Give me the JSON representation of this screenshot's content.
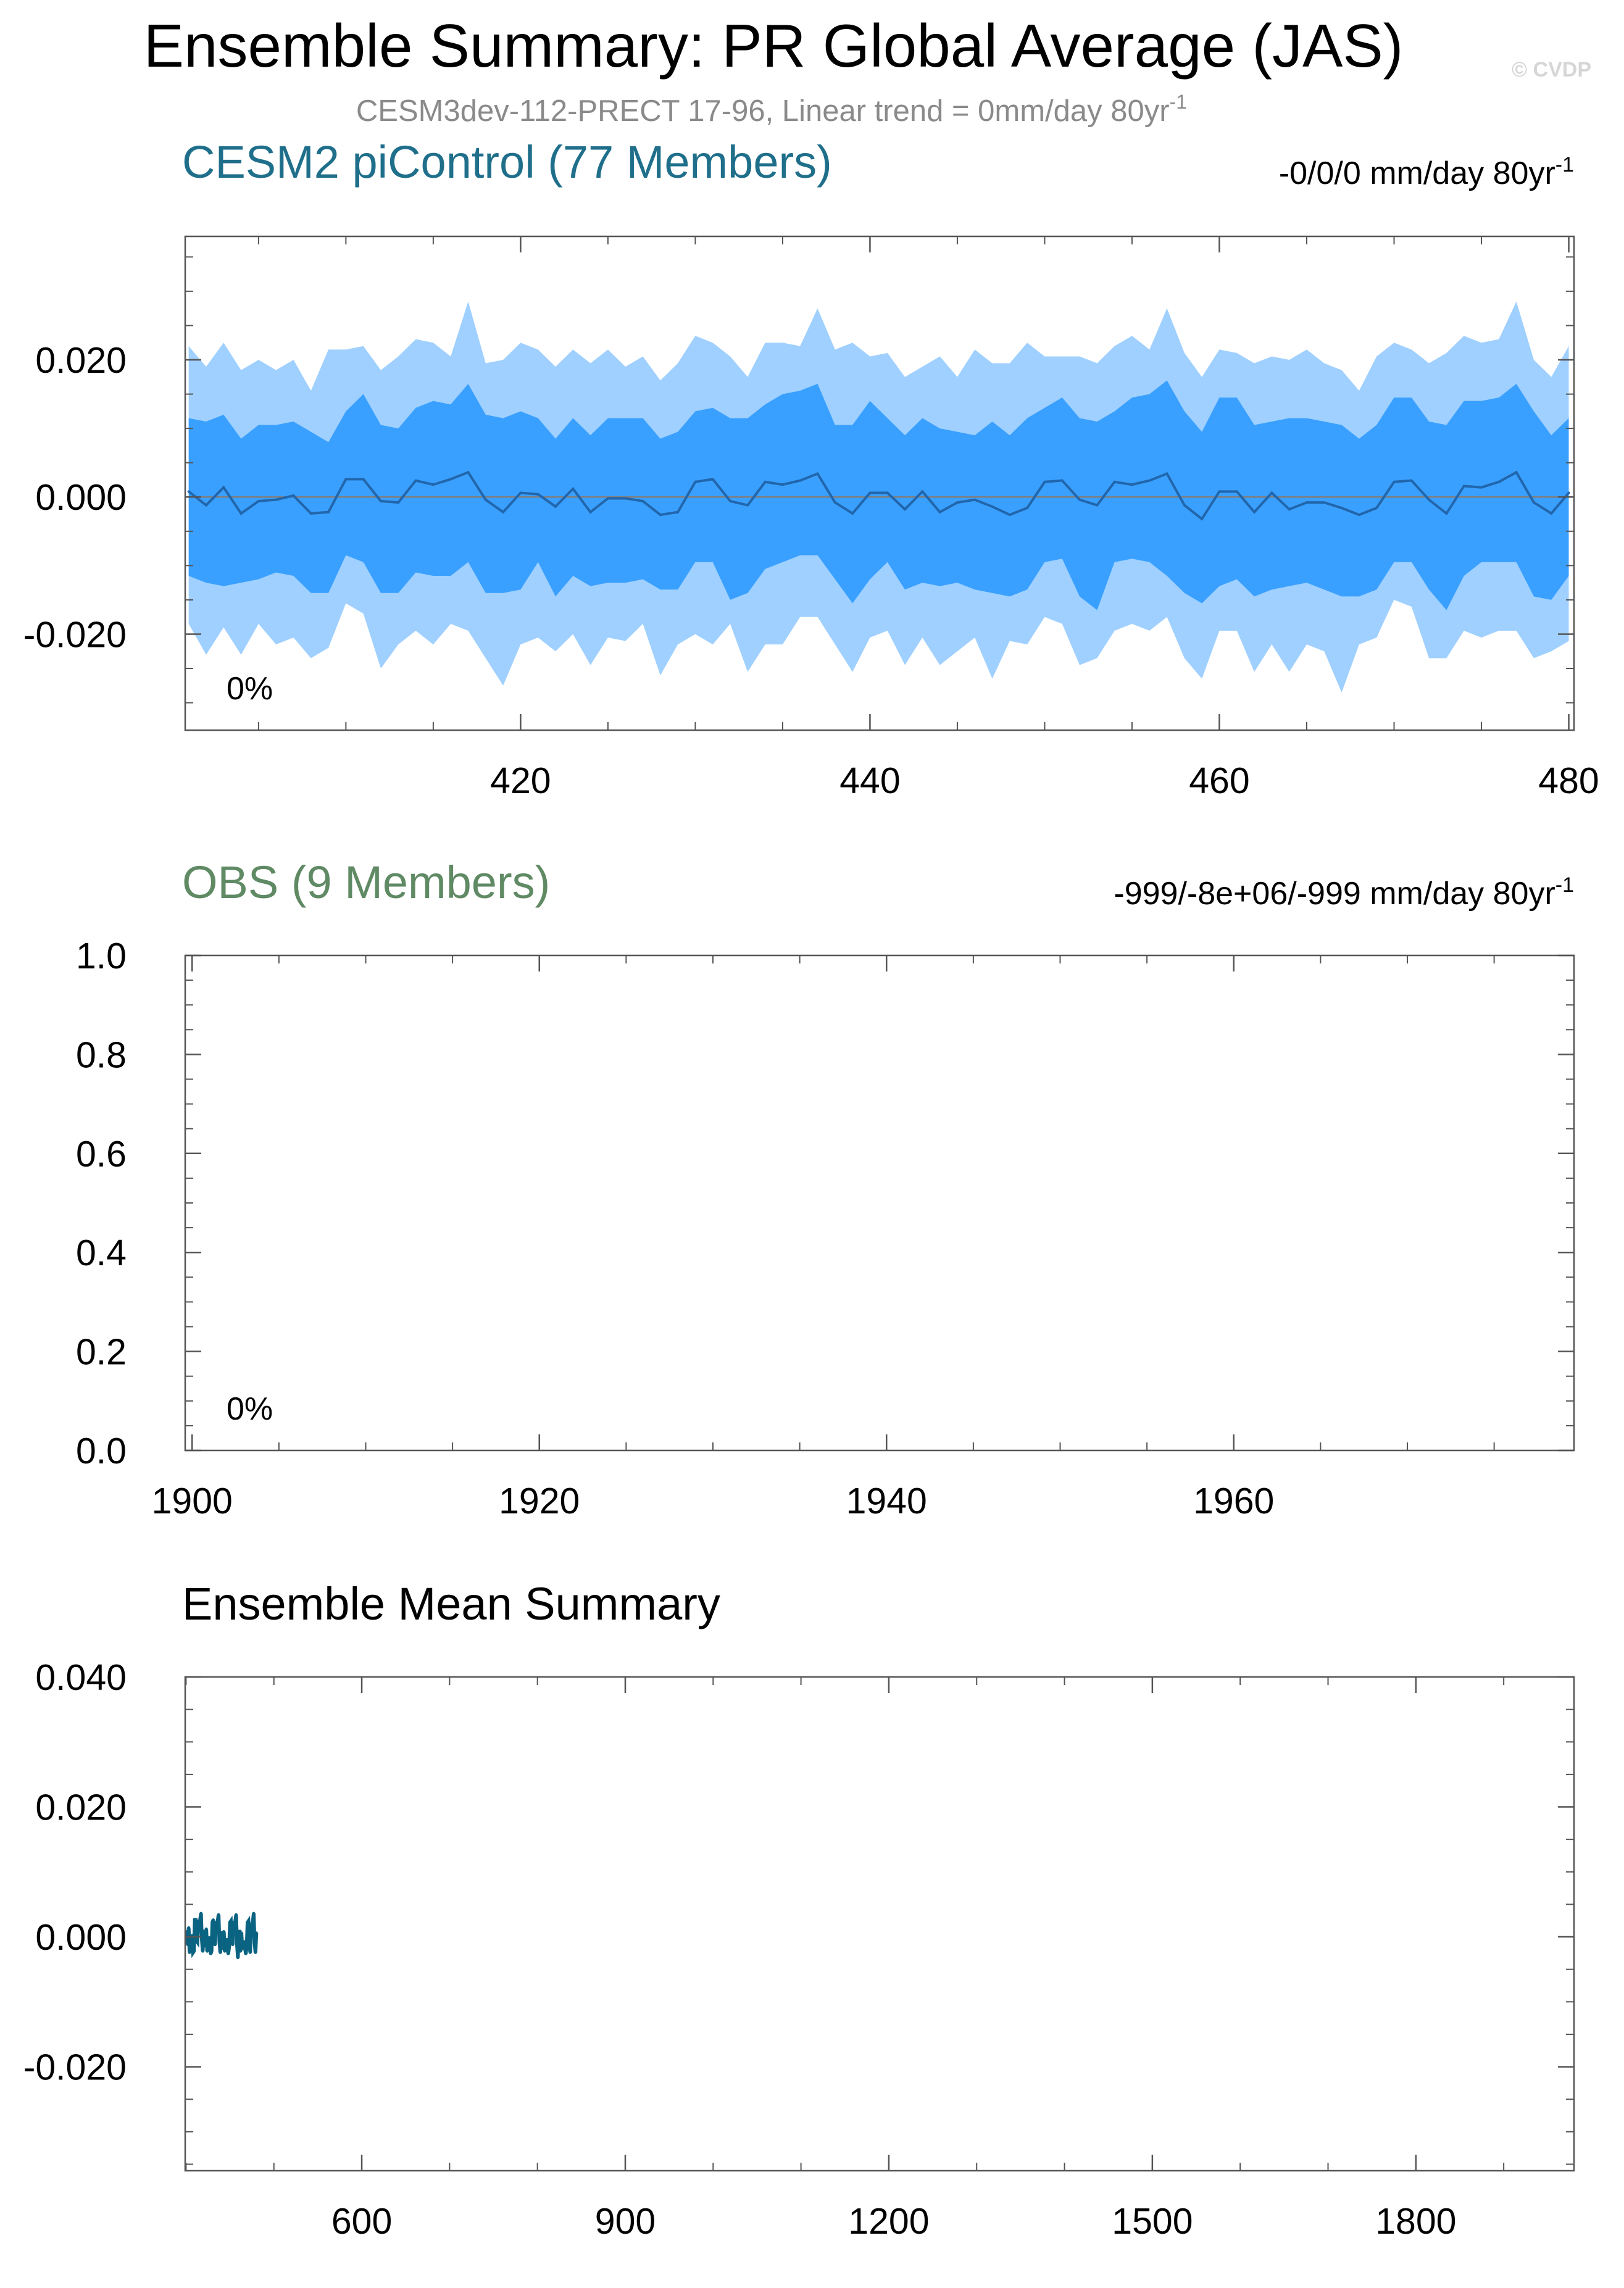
{
  "figure": {
    "title": "Ensemble Summary: PR Global Average (JAS)",
    "subtitle_main": "CESM3dev-112-PRECT 17-96, Linear trend = 0mm/day 80yr",
    "subtitle_sup": "-1",
    "watermark": "© CVDP"
  },
  "colors": {
    "model_title": "#1f6f8b",
    "obs_title": "#5f8a64",
    "band_outer": "#9fd0ff",
    "band_inner": "#3aa0ff",
    "mean_line": "#2166ac",
    "summary_line": "#0b6382",
    "axis": "#555555"
  },
  "chart_data": [
    {
      "type": "area",
      "panel_title": "CESM2 piControl (77 Members)",
      "right_label": "-0/0/0 mm/day 80yr",
      "right_sup": "-1",
      "percent_label": "0%",
      "x": [
        401,
        402,
        403,
        404,
        405,
        406,
        407,
        408,
        409,
        410,
        411,
        412,
        413,
        414,
        415,
        416,
        417,
        418,
        419,
        420,
        421,
        422,
        423,
        424,
        425,
        426,
        427,
        428,
        429,
        430,
        431,
        432,
        433,
        434,
        435,
        436,
        437,
        438,
        439,
        440,
        441,
        442,
        443,
        444,
        445,
        446,
        447,
        448,
        449,
        450,
        451,
        452,
        453,
        454,
        455,
        456,
        457,
        458,
        459,
        460,
        461,
        462,
        463,
        464,
        465,
        466,
        467,
        468,
        469,
        470,
        471,
        472,
        473,
        474,
        475,
        476,
        477,
        478,
        479,
        480
      ],
      "mean": [
        0.0008,
        -0.0012,
        0.0014,
        -0.0024,
        -0.0006,
        -0.0004,
        0.0002,
        -0.0024,
        -0.0022,
        0.0026,
        0.0026,
        -0.0006,
        -0.0008,
        0.0024,
        0.0018,
        0.0026,
        0.0036,
        -0.0004,
        -0.0022,
        0.0006,
        0.0004,
        -0.0014,
        0.0012,
        -0.0022,
        -0.0002,
        -0.0002,
        -0.0006,
        -0.0026,
        -0.0022,
        0.0022,
        0.0026,
        -0.0006,
        -0.0012,
        0.0022,
        0.0018,
        0.0024,
        0.0034,
        -0.0008,
        -0.0024,
        0.0006,
        0.0006,
        -0.0018,
        0.0008,
        -0.0022,
        -0.0008,
        -0.0004,
        -0.0014,
        -0.0026,
        -0.0016,
        0.0022,
        0.0024,
        -0.0004,
        -0.0012,
        0.0022,
        0.0018,
        0.0024,
        0.0034,
        -0.0012,
        -0.0032,
        0.0008,
        0.0008,
        -0.0022,
        0.0006,
        -0.0018,
        -0.0008,
        -0.0008,
        -0.0016,
        -0.0026,
        -0.0016,
        0.0022,
        0.0024,
        -0.0004,
        -0.0024,
        0.0016,
        0.0014,
        0.0022,
        0.0036,
        -0.0008,
        -0.0024,
        0.0006
      ],
      "inner_upper": [
        0.0115,
        0.011,
        0.012,
        0.0085,
        0.0105,
        0.0105,
        0.011,
        0.0095,
        0.008,
        0.0125,
        0.015,
        0.0105,
        0.01,
        0.013,
        0.014,
        0.0135,
        0.0165,
        0.012,
        0.0115,
        0.0125,
        0.0115,
        0.0085,
        0.0115,
        0.009,
        0.0115,
        0.0115,
        0.0115,
        0.0085,
        0.0095,
        0.0125,
        0.013,
        0.0115,
        0.0115,
        0.0135,
        0.015,
        0.0155,
        0.0165,
        0.0105,
        0.0105,
        0.014,
        0.0115,
        0.009,
        0.0115,
        0.01,
        0.0095,
        0.009,
        0.011,
        0.009,
        0.0115,
        0.013,
        0.0145,
        0.0115,
        0.011,
        0.0125,
        0.0145,
        0.015,
        0.017,
        0.0125,
        0.0095,
        0.0145,
        0.0145,
        0.0105,
        0.011,
        0.0115,
        0.0115,
        0.011,
        0.0105,
        0.0085,
        0.0105,
        0.0145,
        0.0145,
        0.011,
        0.0105,
        0.014,
        0.014,
        0.0145,
        0.0165,
        0.0125,
        0.009,
        0.0115
      ],
      "inner_lower": [
        -0.0115,
        -0.0125,
        -0.013,
        -0.0125,
        -0.012,
        -0.011,
        -0.0115,
        -0.014,
        -0.014,
        -0.0085,
        -0.0095,
        -0.014,
        -0.014,
        -0.011,
        -0.0115,
        -0.0115,
        -0.0095,
        -0.014,
        -0.014,
        -0.0135,
        -0.0095,
        -0.0145,
        -0.0115,
        -0.013,
        -0.0125,
        -0.0125,
        -0.012,
        -0.0135,
        -0.0135,
        -0.0095,
        -0.0095,
        -0.015,
        -0.014,
        -0.0105,
        -0.0095,
        -0.0085,
        -0.0085,
        -0.012,
        -0.0155,
        -0.012,
        -0.0095,
        -0.0135,
        -0.0125,
        -0.013,
        -0.0125,
        -0.0135,
        -0.014,
        -0.0145,
        -0.0135,
        -0.0095,
        -0.009,
        -0.0145,
        -0.0165,
        -0.0095,
        -0.009,
        -0.0095,
        -0.0115,
        -0.014,
        -0.0155,
        -0.013,
        -0.012,
        -0.0145,
        -0.0135,
        -0.013,
        -0.0125,
        -0.0135,
        -0.0145,
        -0.0145,
        -0.0135,
        -0.0095,
        -0.0095,
        -0.0135,
        -0.0165,
        -0.0115,
        -0.0095,
        -0.0095,
        -0.0095,
        -0.0145,
        -0.015,
        -0.0115
      ],
      "outer_upper": [
        0.022,
        0.019,
        0.0225,
        0.0185,
        0.02,
        0.0185,
        0.02,
        0.0155,
        0.0215,
        0.0215,
        0.022,
        0.0185,
        0.0205,
        0.023,
        0.0225,
        0.0205,
        0.0285,
        0.0195,
        0.02,
        0.0225,
        0.0215,
        0.019,
        0.0215,
        0.0195,
        0.0215,
        0.019,
        0.0205,
        0.017,
        0.0195,
        0.0235,
        0.0225,
        0.0205,
        0.0175,
        0.0225,
        0.0225,
        0.022,
        0.0275,
        0.0215,
        0.0225,
        0.0205,
        0.021,
        0.0175,
        0.019,
        0.0205,
        0.0175,
        0.0215,
        0.0195,
        0.0195,
        0.0225,
        0.0205,
        0.0205,
        0.0205,
        0.0195,
        0.022,
        0.0235,
        0.0215,
        0.0275,
        0.021,
        0.0175,
        0.0215,
        0.021,
        0.0195,
        0.0205,
        0.02,
        0.0215,
        0.0195,
        0.0185,
        0.0155,
        0.0205,
        0.0225,
        0.0215,
        0.0195,
        0.021,
        0.0235,
        0.0225,
        0.023,
        0.0285,
        0.02,
        0.0175,
        0.022
      ],
      "outer_lower": [
        -0.0185,
        -0.023,
        -0.019,
        -0.023,
        -0.0185,
        -0.0215,
        -0.0205,
        -0.0235,
        -0.022,
        -0.0155,
        -0.017,
        -0.025,
        -0.0215,
        -0.0195,
        -0.0215,
        -0.0185,
        -0.0195,
        -0.0235,
        -0.0275,
        -0.0215,
        -0.0205,
        -0.0225,
        -0.02,
        -0.0245,
        -0.0205,
        -0.021,
        -0.0185,
        -0.026,
        -0.0215,
        -0.02,
        -0.0215,
        -0.0185,
        -0.0255,
        -0.0215,
        -0.0215,
        -0.0175,
        -0.0175,
        -0.0215,
        -0.0255,
        -0.0205,
        -0.0195,
        -0.0245,
        -0.0205,
        -0.0245,
        -0.0225,
        -0.0205,
        -0.0265,
        -0.021,
        -0.0215,
        -0.0175,
        -0.0185,
        -0.0245,
        -0.0235,
        -0.0195,
        -0.0185,
        -0.0195,
        -0.0175,
        -0.0235,
        -0.0265,
        -0.0195,
        -0.0195,
        -0.0255,
        -0.0215,
        -0.0255,
        -0.0215,
        -0.0225,
        -0.0285,
        -0.0215,
        -0.0205,
        -0.015,
        -0.016,
        -0.0235,
        -0.0235,
        -0.0195,
        -0.0205,
        -0.0195,
        -0.0195,
        -0.0235,
        -0.0225,
        -0.021
      ],
      "xlim": [
        400.8,
        480.3
      ],
      "ylim": [
        -0.034,
        0.038
      ],
      "xticks": [
        420,
        440,
        460,
        480
      ],
      "xtick_labels": [
        "420",
        "440",
        "460",
        "480"
      ],
      "yticks": [
        -0.02,
        0,
        0.02
      ],
      "ytick_labels": [
        "-0.020",
        "0.000",
        "0.020"
      ]
    },
    {
      "type": "line",
      "panel_title": "OBS (9 Members)",
      "right_label": "-999/-8e+06/-999 mm/day 80yr",
      "right_sup": "-1",
      "percent_label": "0%",
      "xlim": [
        1899.6,
        1979.6
      ],
      "ylim": [
        0,
        1
      ],
      "xticks": [
        1900,
        1920,
        1940,
        1960
      ],
      "xtick_labels": [
        "1900",
        "1920",
        "1940",
        "1960"
      ],
      "yticks": [
        0,
        0.2,
        0.4,
        0.6,
        0.8,
        1.0
      ],
      "ytick_labels": [
        "0.0",
        "0.2",
        "0.4",
        "0.6",
        "0.8",
        "1.0"
      ]
    },
    {
      "type": "line",
      "panel_title": "Ensemble Mean Summary",
      "x_start": 401,
      "values": [
        0.0008,
        -0.0012,
        0.0014,
        -0.0024,
        -0.0006,
        -0.0004,
        0.0002,
        -0.0024,
        -0.0022,
        0.0026,
        0.0026,
        -0.0006,
        -0.0008,
        0.0024,
        0.0018,
        0.0026,
        0.0036,
        -0.0004,
        -0.0022,
        0.0006,
        0.0004,
        -0.0014,
        0.0012,
        -0.0022,
        -0.0002,
        -0.0002,
        -0.0006,
        -0.0026,
        -0.0022,
        0.0022,
        0.0026,
        -0.0006,
        -0.0012,
        0.0022,
        0.0018,
        0.0024,
        0.0034,
        -0.0008,
        -0.0024,
        0.0006,
        0.0006,
        -0.0018,
        0.0008,
        -0.0022,
        -0.0008,
        -0.0004,
        -0.0014,
        -0.0026,
        -0.0016,
        0.0022,
        0.0024,
        -0.0004,
        -0.0012,
        0.0022,
        0.0018,
        0.0024,
        0.0034,
        -0.0012,
        -0.0032,
        0.0008,
        0.0008,
        -0.0022,
        0.0006,
        -0.0018,
        -0.0008,
        -0.0008,
        -0.0016,
        -0.0026,
        -0.0016,
        0.0022,
        0.0024,
        -0.0004,
        -0.0024,
        0.0016,
        0.0014,
        0.0022,
        0.0036,
        -0.0008,
        -0.0024,
        0.0006
      ],
      "xlim": [
        399,
        1980
      ],
      "ylim": [
        -0.036,
        0.04
      ],
      "xticks": [
        600,
        900,
        1200,
        1500,
        1800
      ],
      "xtick_labels": [
        "600",
        "900",
        "1200",
        "1500",
        "1800"
      ],
      "yticks": [
        -0.02,
        0,
        0.02,
        0.04
      ],
      "ytick_labels": [
        "-0.020",
        "0.000",
        "0.020",
        "0.040"
      ]
    }
  ]
}
